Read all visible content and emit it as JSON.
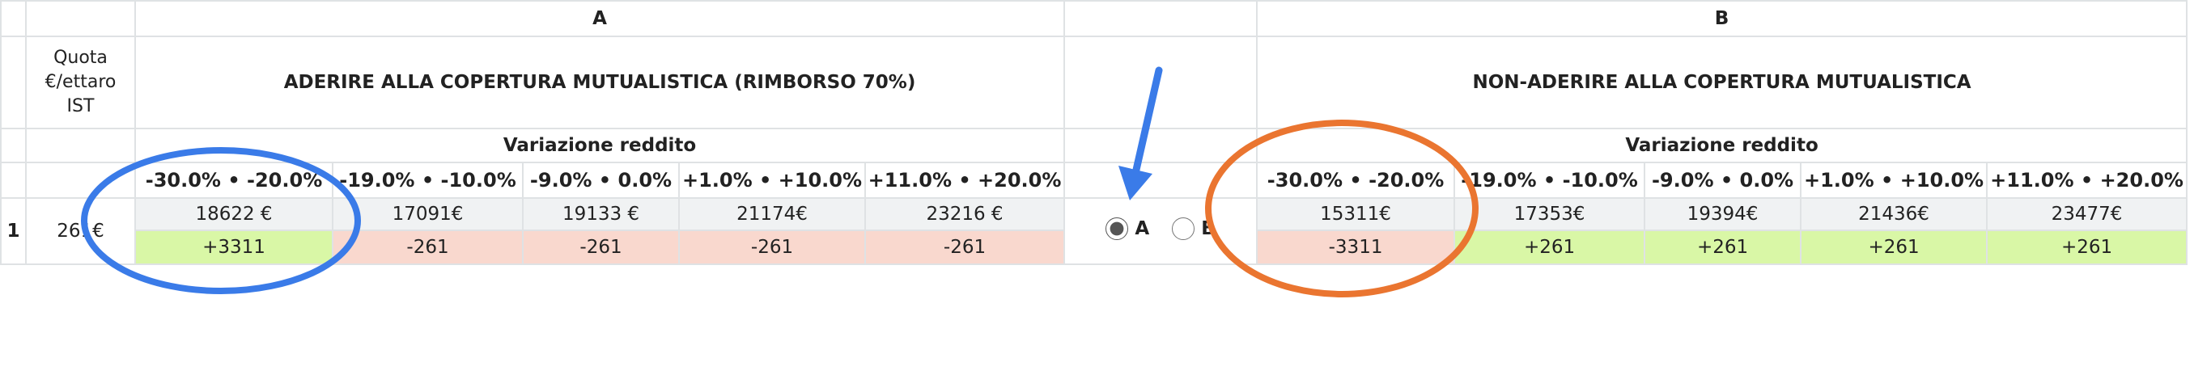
{
  "header": {
    "col_a": "A",
    "col_b": "B"
  },
  "quota_label": [
    "Quota",
    "€/ettaro",
    "IST"
  ],
  "section_a": {
    "title": "ADERIRE ALLA COPERTURA MUTUALISTICA (RIMBORSO 70%)",
    "subtitle": "Variazione reddito",
    "ranges": [
      "-30.0% • -20.0%",
      "-19.0% • -10.0%",
      "-9.0% • 0.0%",
      "+1.0% • +10.0%",
      "+11.0% • +20.0%"
    ],
    "values": [
      "18622 €",
      "17091€",
      "19133 €",
      "21174€",
      "23216 €"
    ],
    "diffs": [
      "+3311",
      "-261",
      "-261",
      "-261",
      "-261"
    ]
  },
  "section_b": {
    "title": "NON-ADERIRE ALLA COPERTURA MUTUALISTICA",
    "subtitle": "Variazione reddito",
    "ranges": [
      "-30.0% • -20.0%",
      "-19.0% • -10.0%",
      "-9.0% • 0.0%",
      "+1.0% • +10.0%",
      "+11.0% • +20.0%"
    ],
    "values": [
      "15311€",
      "17353€",
      "19394€",
      "21436€",
      "23477€"
    ],
    "diffs": [
      "-3311",
      "+261",
      "+261",
      "+261",
      "+261"
    ]
  },
  "row": {
    "number": "1",
    "quota": "261€"
  },
  "choice": {
    "options": [
      "A",
      "B"
    ],
    "selected": "A"
  }
}
